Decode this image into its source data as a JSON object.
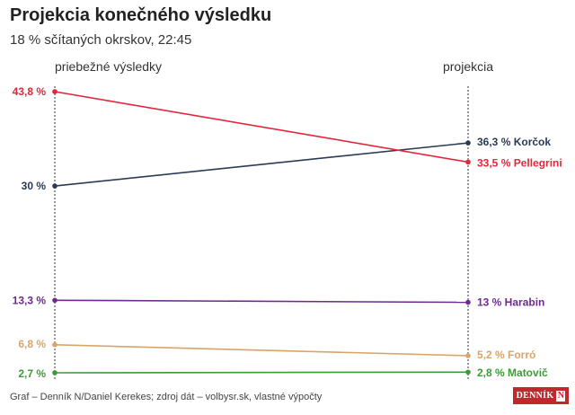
{
  "chart_data": {
    "type": "slope",
    "title": "Projekcia konečného výsledku",
    "subtitle": "18 % sčítaných okrskov, 22:45",
    "columns": [
      "priebežné výsledky",
      "projekcia"
    ],
    "ylim": [
      0,
      45
    ],
    "series": [
      {
        "name": "Korčok",
        "color": "#2b3a55",
        "values": [
          30,
          36.3
        ],
        "start_label": "30 %",
        "end_label": "36,3 % Korčok"
      },
      {
        "name": "Pellegrini",
        "color": "#e3263a",
        "values": [
          43.8,
          33.5
        ],
        "start_label": "43,8 %",
        "end_label": "33,5 % Pellegrini"
      },
      {
        "name": "Harabin",
        "color": "#6e2a8c",
        "values": [
          13.3,
          13
        ],
        "start_label": "13,3 %",
        "end_label": "13 % Harabin"
      },
      {
        "name": "Forró",
        "color": "#d9a46a",
        "values": [
          6.8,
          5.2
        ],
        "start_label": "6,8 %",
        "end_label": "5,2 % Forró"
      },
      {
        "name": "Matovič",
        "color": "#3d9b35",
        "values": [
          2.7,
          2.8
        ],
        "start_label": "2,7 %",
        "end_label": "2,8 % Matovič"
      }
    ]
  },
  "footer": {
    "source": "Graf – Denník N/Daniel Kerekes; zdroj dát – volbysr.sk, vlastné výpočty",
    "logo_text": "DENNÍK",
    "logo_mark": "N"
  }
}
